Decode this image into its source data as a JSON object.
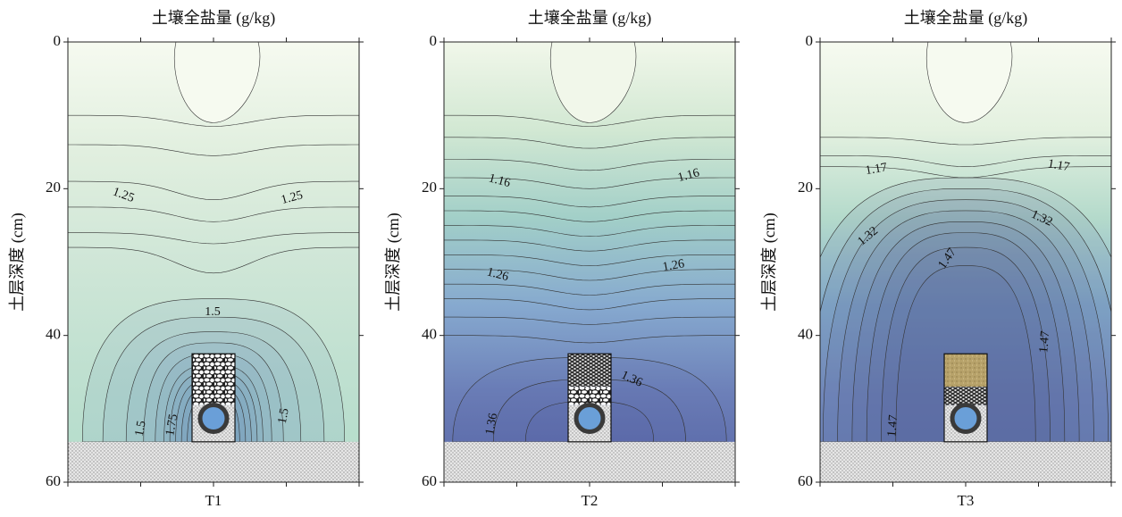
{
  "chart_data": [
    {
      "type": "contour",
      "title": "土壤全盐量 (g/kg)",
      "ylabel": "土层深度 (cm)",
      "xlabel": "T1",
      "ylim": [
        0,
        60
      ],
      "yticks": [
        0,
        20,
        40,
        60
      ],
      "colors": [
        "#f6faf0",
        "#e1efdf",
        "#cfe6d7",
        "#bfe0d0",
        "#b3dccb"
      ],
      "core_color": "#5f86b8",
      "contour_labels": [
        1.25,
        1.25,
        1.5,
        1.5,
        1.75,
        1.5
      ]
    },
    {
      "type": "contour",
      "title": "土壤全盐量 (g/kg)",
      "ylabel": "土层深度 (cm)",
      "xlabel": "T2",
      "ylim": [
        0,
        60
      ],
      "yticks": [
        0,
        20,
        40,
        60
      ],
      "colors": [
        "#f1f7ea",
        "#d2e8d3",
        "#a2cfc8",
        "#86a9cf",
        "#6c7fb8",
        "#5a68a8"
      ],
      "core_color": "#4e5a9c",
      "contour_labels": [
        1.16,
        1.16,
        1.26,
        1.26,
        1.36,
        1.36
      ]
    },
    {
      "type": "contour",
      "title": "土壤全盐量 (g/kg)",
      "ylabel": "土层深度 (cm)",
      "xlabel": "T3",
      "ylim": [
        0,
        60
      ],
      "yticks": [
        0,
        20,
        40,
        60
      ],
      "colors": [
        "#f6faf0",
        "#e4f1e0",
        "#b4dacb",
        "#89b2cf",
        "#7a94c4",
        "#6f88be"
      ],
      "core_color": "#4f5a98",
      "contour_labels": [
        1.17,
        1.17,
        1.32,
        1.32,
        1.47,
        1.47,
        1.47
      ]
    }
  ]
}
